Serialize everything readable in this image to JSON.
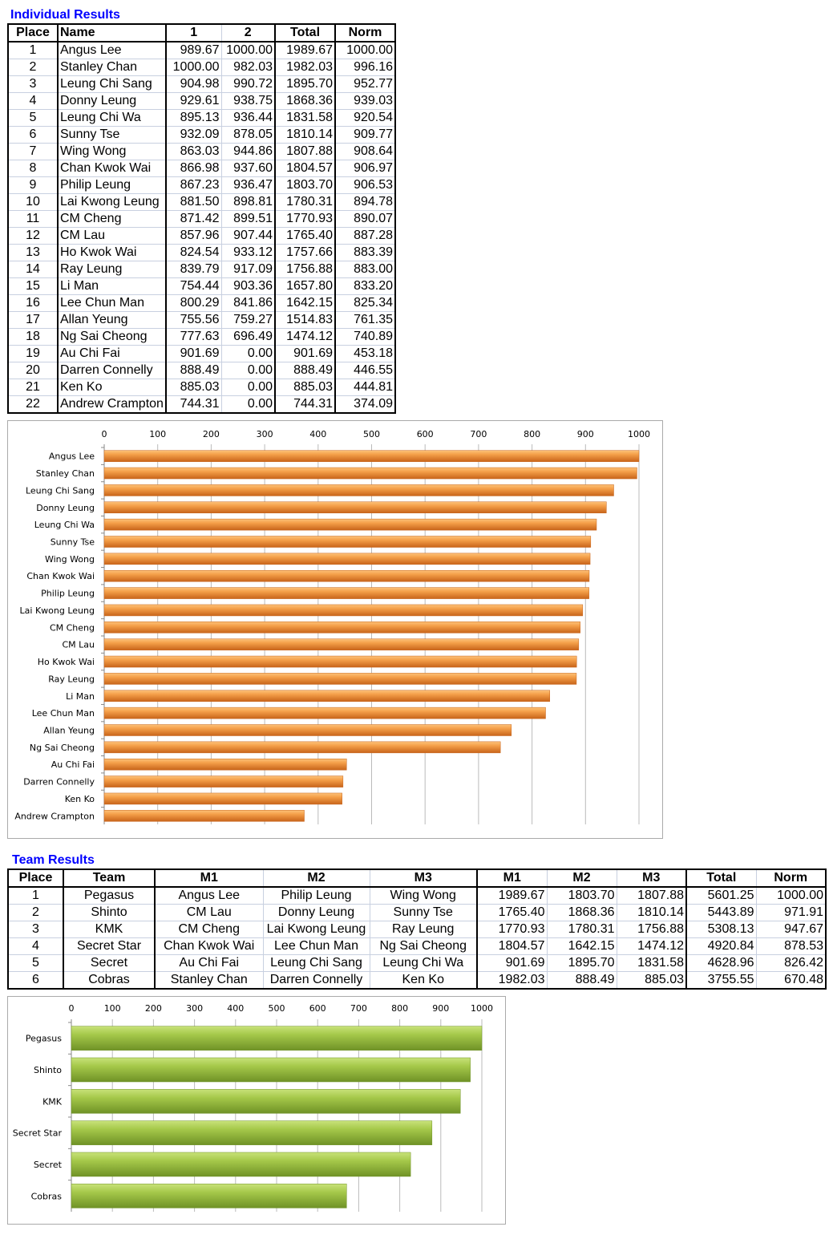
{
  "individual": {
    "title": "Individual Results",
    "headers": [
      "Place",
      "Name",
      "1",
      "2",
      "Total",
      "Norm"
    ],
    "rows": [
      [
        "1",
        "Angus Lee",
        "989.67",
        "1000.00",
        "1989.67",
        "1000.00"
      ],
      [
        "2",
        "Stanley Chan",
        "1000.00",
        "982.03",
        "1982.03",
        "996.16"
      ],
      [
        "3",
        "Leung Chi Sang",
        "904.98",
        "990.72",
        "1895.70",
        "952.77"
      ],
      [
        "4",
        "Donny Leung",
        "929.61",
        "938.75",
        "1868.36",
        "939.03"
      ],
      [
        "5",
        "Leung Chi Wa",
        "895.13",
        "936.44",
        "1831.58",
        "920.54"
      ],
      [
        "6",
        "Sunny Tse",
        "932.09",
        "878.05",
        "1810.14",
        "909.77"
      ],
      [
        "7",
        "Wing Wong",
        "863.03",
        "944.86",
        "1807.88",
        "908.64"
      ],
      [
        "8",
        "Chan Kwok Wai",
        "866.98",
        "937.60",
        "1804.57",
        "906.97"
      ],
      [
        "9",
        "Philip Leung",
        "867.23",
        "936.47",
        "1803.70",
        "906.53"
      ],
      [
        "10",
        "Lai Kwong Leung",
        "881.50",
        "898.81",
        "1780.31",
        "894.78"
      ],
      [
        "11",
        "CM Cheng",
        "871.42",
        "899.51",
        "1770.93",
        "890.07"
      ],
      [
        "12",
        "CM Lau",
        "857.96",
        "907.44",
        "1765.40",
        "887.28"
      ],
      [
        "13",
        "Ho Kwok Wai",
        "824.54",
        "933.12",
        "1757.66",
        "883.39"
      ],
      [
        "14",
        "Ray Leung",
        "839.79",
        "917.09",
        "1756.88",
        "883.00"
      ],
      [
        "15",
        "Li Man",
        "754.44",
        "903.36",
        "1657.80",
        "833.20"
      ],
      [
        "16",
        "Lee Chun Man",
        "800.29",
        "841.86",
        "1642.15",
        "825.34"
      ],
      [
        "17",
        "Allan Yeung",
        "755.56",
        "759.27",
        "1514.83",
        "761.35"
      ],
      [
        "18",
        "Ng Sai Cheong",
        "777.63",
        "696.49",
        "1474.12",
        "740.89"
      ],
      [
        "19",
        "Au Chi Fai",
        "901.69",
        "0.00",
        "901.69",
        "453.18"
      ],
      [
        "20",
        "Darren Connelly",
        "888.49",
        "0.00",
        "888.49",
        "446.55"
      ],
      [
        "21",
        "Ken Ko",
        "885.03",
        "0.00",
        "885.03",
        "444.81"
      ],
      [
        "22",
        "Andrew Crampton",
        "744.31",
        "0.00",
        "744.31",
        "374.09"
      ]
    ]
  },
  "team": {
    "title": "Team Results",
    "headers": [
      "Place",
      "Team",
      "M1",
      "M2",
      "M3",
      "M1",
      "M2",
      "M3",
      "Total",
      "Norm"
    ],
    "rows": [
      [
        "1",
        "Pegasus",
        "Angus Lee",
        "Philip Leung",
        "Wing Wong",
        "1989.67",
        "1803.70",
        "1807.88",
        "5601.25",
        "1000.00"
      ],
      [
        "2",
        "Shinto",
        "CM Lau",
        "Donny Leung",
        "Sunny Tse",
        "1765.40",
        "1868.36",
        "1810.14",
        "5443.89",
        "971.91"
      ],
      [
        "3",
        "KMK",
        "CM Cheng",
        "Lai Kwong Leung",
        "Ray Leung",
        "1770.93",
        "1780.31",
        "1756.88",
        "5308.13",
        "947.67"
      ],
      [
        "4",
        "Secret Star",
        "Chan Kwok Wai",
        "Lee Chun Man",
        "Ng Sai Cheong",
        "1804.57",
        "1642.15",
        "1474.12",
        "4920.84",
        "878.53"
      ],
      [
        "5",
        "Secret",
        "Au Chi Fai",
        "Leung Chi Sang",
        "Leung Chi Wa",
        "901.69",
        "1895.70",
        "1831.58",
        "4628.96",
        "826.42"
      ],
      [
        "6",
        "Cobras",
        "Stanley Chan",
        "Darren Connelly",
        "Ken Ko",
        "1982.03",
        "888.49",
        "885.03",
        "3755.55",
        "670.48"
      ]
    ]
  },
  "chart_data": [
    {
      "type": "bar",
      "orientation": "horizontal",
      "categories": [
        "Angus Lee",
        "Stanley Chan",
        "Leung Chi Sang",
        "Donny Leung",
        "Leung Chi Wa",
        "Sunny Tse",
        "Wing Wong",
        "Chan Kwok Wai",
        "Philip Leung",
        "Lai Kwong Leung",
        "CM Cheng",
        "CM Lau",
        "Ho Kwok Wai",
        "Ray Leung",
        "Li Man",
        "Lee Chun Man",
        "Allan Yeung",
        "Ng Sai Cheong",
        "Au Chi Fai",
        "Darren Connelly",
        "Ken Ko",
        "Andrew Crampton"
      ],
      "values": [
        1000.0,
        996.16,
        952.77,
        939.03,
        920.54,
        909.77,
        908.64,
        906.97,
        906.53,
        894.78,
        890.07,
        887.28,
        883.39,
        883.0,
        833.2,
        825.34,
        761.35,
        740.89,
        453.18,
        446.55,
        444.81,
        374.09
      ],
      "xlim": [
        0,
        1000
      ],
      "ticks": [
        "0",
        "100",
        "200",
        "300",
        "400",
        "500",
        "600",
        "700",
        "800",
        "900",
        "1000"
      ],
      "axis_position": "top",
      "grid": true,
      "color": "#f0902c"
    },
    {
      "type": "bar",
      "orientation": "horizontal",
      "categories": [
        "Pegasus",
        "Shinto",
        "KMK",
        "Secret Star",
        "Secret",
        "Cobras"
      ],
      "values": [
        1000.0,
        971.91,
        947.67,
        878.53,
        826.42,
        670.48
      ],
      "xlim": [
        0,
        1000
      ],
      "ticks": [
        "0",
        "100",
        "200",
        "300",
        "400",
        "500",
        "600",
        "700",
        "800",
        "900",
        "1000"
      ],
      "axis_position": "top",
      "grid": true,
      "color": "#9bc040"
    }
  ]
}
